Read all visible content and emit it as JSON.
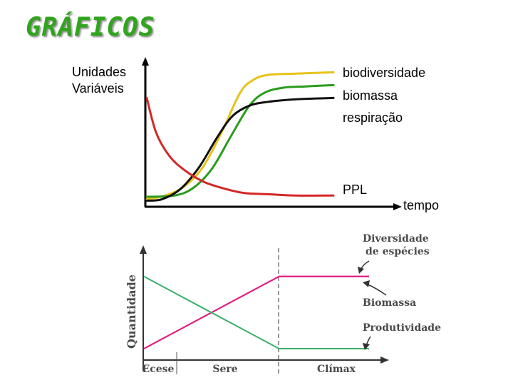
{
  "title": "GRÁFICOS",
  "chart_data": [
    {
      "type": "line",
      "ylabel": "Unidades\nVariáveis",
      "xlabel": "tempo",
      "series": [
        {
          "name": "biodiversidade",
          "color": "#e8c21a",
          "points": [
            [
              0,
              3
            ],
            [
              10,
              6
            ],
            [
              20,
              13
            ],
            [
              30,
              28
            ],
            [
              40,
              55
            ],
            [
              50,
              86
            ],
            [
              57,
              96
            ],
            [
              65,
              100
            ],
            [
              80,
              101
            ],
            [
              100,
              102
            ]
          ]
        },
        {
          "name": "biomassa",
          "color": "#2a9c1d",
          "points": [
            [
              0,
              5
            ],
            [
              15,
              6
            ],
            [
              25,
              12
            ],
            [
              35,
              27
            ],
            [
              45,
              52
            ],
            [
              55,
              76
            ],
            [
              63,
              86
            ],
            [
              73,
              90
            ],
            [
              85,
              91
            ],
            [
              100,
              92
            ]
          ]
        },
        {
          "name": "respiração",
          "color": "#111111",
          "points": [
            [
              0,
              2
            ],
            [
              8,
              3
            ],
            [
              18,
              11
            ],
            [
              28,
              28
            ],
            [
              38,
              52
            ],
            [
              46,
              68
            ],
            [
              55,
              76
            ],
            [
              65,
              79
            ],
            [
              80,
              81
            ],
            [
              100,
              82
            ]
          ]
        },
        {
          "name": "PPL",
          "color": "#d42727",
          "points": [
            [
              0,
              82
            ],
            [
              5,
              55
            ],
            [
              12,
              37
            ],
            [
              20,
              26
            ],
            [
              30,
              17
            ],
            [
              40,
              12
            ],
            [
              52,
              8
            ],
            [
              65,
              7
            ],
            [
              80,
              6
            ],
            [
              100,
              6
            ]
          ]
        }
      ]
    },
    {
      "type": "line",
      "ylabel": "Quantidade",
      "categories": [
        "Ecese",
        "Sere",
        "Clímax"
      ],
      "series": [
        {
          "name": "Diversidade de espécies",
          "color": "#e21d80",
          "points": [
            [
              0,
              5
            ],
            [
              60,
              51
            ],
            [
              100,
              51
            ]
          ]
        },
        {
          "name": "Biomassa",
          "color": "#e21d80",
          "points": [
            [
              0,
              5
            ],
            [
              60,
              51
            ],
            [
              100,
              51
            ]
          ]
        },
        {
          "name": "Produtividade",
          "color": "#3bb06a",
          "points": [
            [
              0,
              51
            ],
            [
              60,
              5
            ],
            [
              100,
              5
            ]
          ]
        }
      ],
      "annotations": [
        "Diversidade\nde espécies",
        "Biomassa",
        "Produtividade"
      ]
    }
  ]
}
